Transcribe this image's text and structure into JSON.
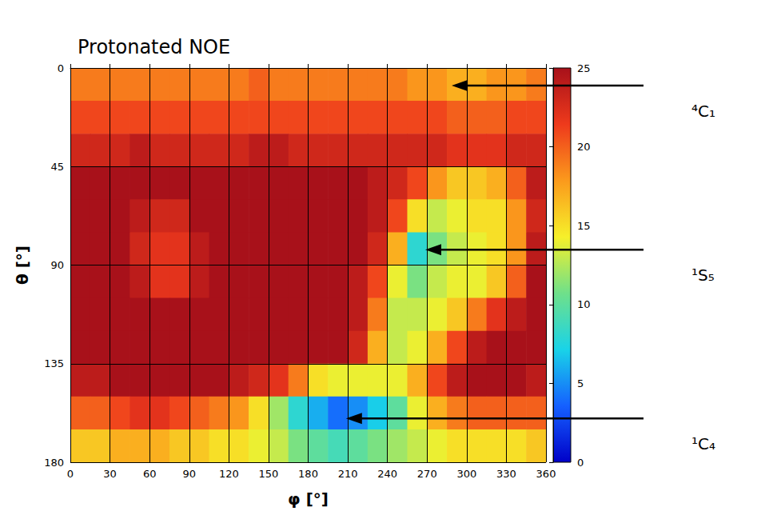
{
  "chart_data": {
    "type": "heatmap",
    "title": "Protonated NOE",
    "x_label": "φ [°]",
    "y_label": "θ [°]",
    "xlim": [
      0,
      360
    ],
    "xticks": [
      0,
      30,
      60,
      90,
      120,
      150,
      180,
      210,
      240,
      270,
      300,
      330,
      360
    ],
    "ylim": [
      0,
      180
    ],
    "yticks": [
      0,
      45,
      90,
      135,
      180
    ],
    "grid": true,
    "x_edges": [
      0,
      15,
      30,
      45,
      60,
      75,
      90,
      105,
      120,
      135,
      150,
      165,
      180,
      195,
      210,
      225,
      240,
      255,
      270,
      285,
      300,
      315,
      330,
      345,
      360
    ],
    "y_edges": [
      0,
      15,
      30,
      45,
      60,
      75,
      90,
      105,
      120,
      135,
      150,
      165,
      180
    ],
    "cells": [
      [
        19,
        19,
        19,
        19,
        19,
        19,
        19,
        19,
        19,
        20,
        19,
        19,
        19,
        19,
        19,
        19,
        19,
        18,
        18,
        17,
        17,
        18,
        18,
        19
      ],
      [
        21,
        21,
        21,
        21,
        21,
        21,
        21,
        21,
        21,
        21,
        21,
        21,
        21,
        21,
        21,
        21,
        21,
        21,
        21,
        20,
        20,
        20,
        21,
        21
      ],
      [
        23,
        23,
        23,
        24,
        23,
        23,
        23,
        23,
        23,
        24,
        24,
        23,
        23,
        23,
        23,
        23,
        23,
        23,
        23,
        22,
        22,
        22,
        23,
        23
      ],
      [
        25,
        25,
        25,
        25,
        25,
        25,
        25,
        25,
        25,
        25,
        25,
        25,
        25,
        25,
        25,
        24,
        23,
        21,
        18,
        16,
        16,
        17,
        20,
        24
      ],
      [
        25,
        25,
        25,
        24,
        23,
        23,
        25,
        25,
        25,
        25,
        25,
        25,
        25,
        25,
        25,
        24,
        21,
        15,
        13,
        14,
        15,
        15,
        18,
        23
      ],
      [
        25,
        25,
        25,
        23,
        22,
        22,
        24,
        25,
        25,
        25,
        25,
        25,
        25,
        25,
        25,
        23,
        17,
        8,
        11,
        13,
        14,
        15,
        18,
        24
      ],
      [
        25,
        25,
        25,
        24,
        22,
        22,
        24,
        25,
        25,
        25,
        25,
        25,
        25,
        25,
        24,
        21,
        14,
        11,
        13,
        14,
        14,
        16,
        20,
        25
      ],
      [
        25,
        25,
        25,
        25,
        25,
        25,
        25,
        25,
        25,
        25,
        25,
        25,
        25,
        25,
        24,
        19,
        13,
        13,
        14,
        16,
        19,
        22,
        24,
        25
      ],
      [
        25,
        25,
        25,
        25,
        25,
        25,
        25,
        25,
        25,
        25,
        25,
        25,
        25,
        25,
        23,
        17,
        13,
        14,
        17,
        21,
        24,
        25,
        25,
        25
      ],
      [
        24,
        24,
        25,
        25,
        25,
        25,
        25,
        25,
        24,
        23,
        22,
        19,
        15,
        14,
        14,
        14,
        14,
        17,
        21,
        24,
        25,
        25,
        25,
        24
      ],
      [
        20,
        20,
        21,
        22,
        22,
        21,
        20,
        19,
        18,
        15,
        12,
        8,
        6,
        4,
        5,
        7,
        10,
        14,
        17,
        19,
        20,
        20,
        20,
        20
      ],
      [
        16,
        16,
        17,
        17,
        17,
        16,
        16,
        15,
        15,
        14,
        13,
        11,
        10,
        9,
        10,
        11,
        12,
        13,
        14,
        15,
        15,
        15,
        15,
        16
      ]
    ],
    "colorbar": {
      "range": [
        0,
        25
      ],
      "ticks": [
        0,
        5,
        10,
        15,
        20,
        25
      ]
    },
    "annotations": [
      {
        "text": "⁴C₁",
        "x": 285,
        "y": 8
      },
      {
        "text": "¹S₅",
        "x": 265,
        "y": 83
      },
      {
        "text": "¹C₄",
        "x": 205,
        "y": 160
      }
    ]
  }
}
